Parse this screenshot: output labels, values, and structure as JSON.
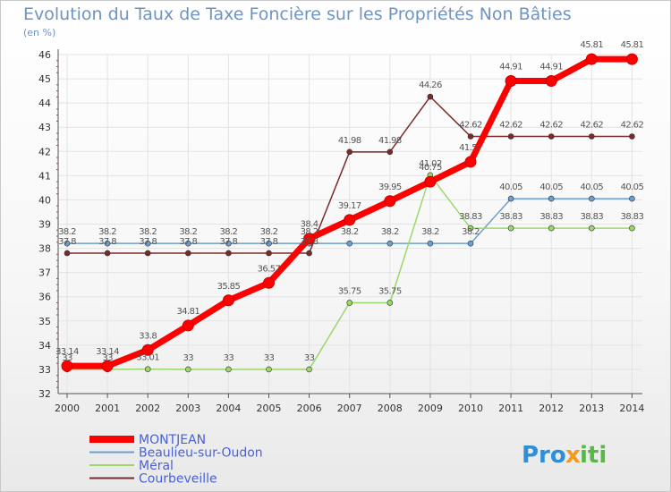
{
  "chart_data": {
    "type": "line",
    "title": "Evolution du Taux de Taxe Foncière sur les Propriétés Non Bâties",
    "subtitle": "(en %)",
    "x": [
      "2000",
      "2001",
      "2002",
      "2003",
      "2004",
      "2005",
      "2006",
      "2007",
      "2008",
      "2009",
      "2010",
      "2011",
      "2012",
      "2013",
      "2014"
    ],
    "ylim": [
      32,
      46
    ],
    "yticks": [
      "32",
      "33",
      "34",
      "35",
      "36",
      "37",
      "38",
      "39",
      "40",
      "41",
      "42",
      "43",
      "44",
      "45",
      "46"
    ],
    "grid": true,
    "legend_position": "bottom-left",
    "series": [
      {
        "name": "MONTJEAN",
        "color": "#ff0000",
        "values": [
          33.14,
          33.14,
          33.8,
          34.81,
          35.85,
          36.57,
          38.4,
          39.17,
          39.95,
          40.75,
          41.57,
          44.91,
          44.91,
          45.81,
          45.81
        ],
        "labels": [
          "33.14",
          "33.14",
          "33.8",
          "34.81",
          "35.85",
          "36.57",
          "38.4",
          "39.17",
          "39.95",
          "40.75",
          "41.57",
          "44.91",
          "44.91",
          "45.81",
          "45.81"
        ]
      },
      {
        "name": "Beaulieu-sur-Oudon",
        "color": "#6a9fd0",
        "values": [
          38.2,
          38.2,
          38.2,
          38.2,
          38.2,
          38.2,
          38.2,
          38.2,
          38.2,
          38.2,
          38.2,
          40.05,
          40.05,
          40.05,
          40.05
        ],
        "labels": [
          "38.2",
          "38.2",
          "38.2",
          "38.2",
          "38.2",
          "38.2",
          "38.2",
          "38.2",
          "38.2",
          "38.2",
          "38.2",
          "40.05",
          "40.05",
          "40.05",
          "40.05"
        ]
      },
      {
        "name": "Méral",
        "color": "#9ad86a",
        "values": [
          33,
          33,
          33.01,
          33,
          33,
          33,
          33,
          35.75,
          35.75,
          41.02,
          38.83,
          38.83,
          38.83,
          38.83,
          38.83
        ],
        "labels": [
          "33",
          "33",
          "33.01",
          "33",
          "33",
          "33",
          "33",
          "35.75",
          "35.75",
          "41.02",
          "38.83",
          "38.83",
          "38.83",
          "38.83",
          "38.83"
        ]
      },
      {
        "name": "Courbeveille",
        "color": "#7a2a2a",
        "values": [
          37.8,
          37.8,
          37.8,
          37.8,
          37.8,
          37.8,
          37.8,
          41.98,
          41.98,
          44.26,
          42.62,
          42.62,
          42.62,
          42.62,
          42.62
        ],
        "labels": [
          "37.8",
          "37.8",
          "37.8",
          "37.8",
          "37.8",
          "37.8",
          "37.8",
          "41.98",
          "41.98",
          "44.26",
          "42.62",
          "42.62",
          "42.62",
          "42.62",
          "42.62"
        ]
      }
    ]
  },
  "brand": {
    "part1": "Pro",
    "part2": "x",
    "part3": "iti"
  }
}
